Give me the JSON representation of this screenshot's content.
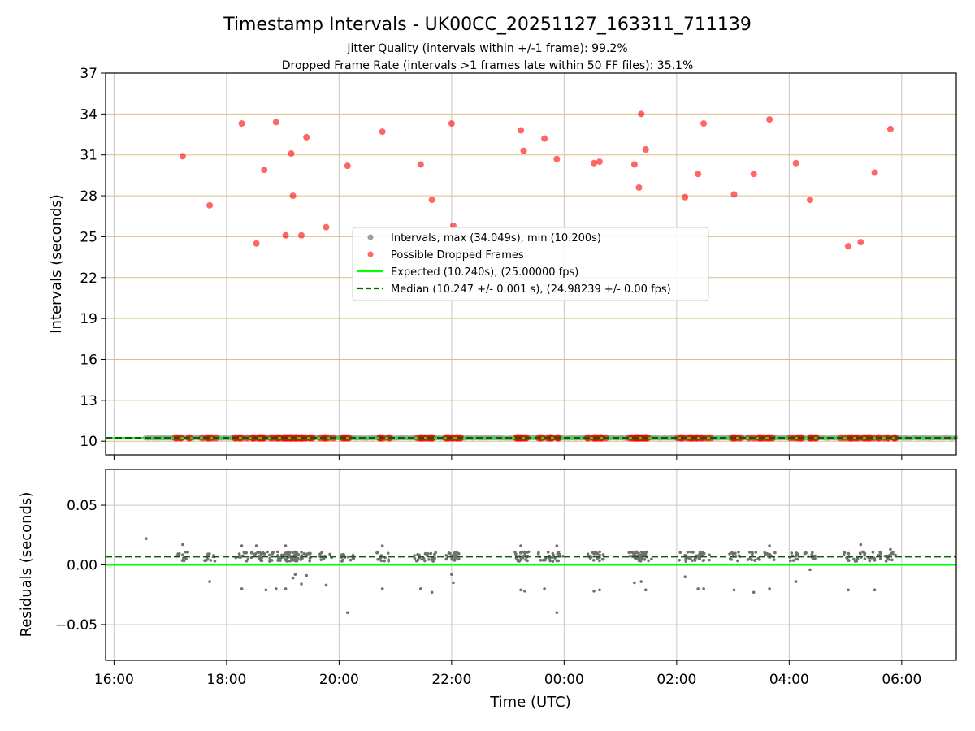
{
  "chart_data": {
    "type": "scatter",
    "title": "Timestamp Intervals - UK00CC_20251127_163311_711139",
    "subtitle_lines": [
      "Jitter Quality (intervals within +/-1 frame): 99.2%",
      "Dropped Frame Rate (intervals >1 frames late within 50 FF files): 35.1%"
    ],
    "xlabel": "Time (UTC)",
    "x_tick_labels": [
      "16:00",
      "18:00",
      "20:00",
      "22:00",
      "00:00",
      "02:00",
      "04:00",
      "06:00"
    ],
    "x_ticks_hours": [
      16,
      18,
      20,
      22,
      24,
      26,
      28,
      30
    ],
    "xlim_hours": [
      15.85,
      30.97
    ],
    "grid": true,
    "legend_placement": "center",
    "colors": {
      "intervals": "#a0a0a0",
      "dropped": "#ff0000",
      "expected": "#00ff00",
      "median": "#006400",
      "gridline_top": "#d9c085",
      "gridline": "#c8c8c8",
      "residual_points": "#707070"
    },
    "panels": [
      {
        "name": "intervals",
        "ylabel": "Intervals (seconds)",
        "ylim": [
          9.0,
          37.0
        ],
        "y_ticks": [
          10,
          13,
          16,
          19,
          22,
          25,
          28,
          31,
          34,
          37
        ],
        "y_tick_labels": [
          "10",
          "13",
          "16",
          "19",
          "22",
          "25",
          "28",
          "31",
          "34",
          "37"
        ],
        "legend": [
          {
            "label": "Intervals, max (34.049s), min (10.200s)",
            "marker": "circle",
            "color": "#a0a0a0"
          },
          {
            "label": "Possible Dropped Frames",
            "marker": "circle",
            "color": "#ff0000"
          },
          {
            "label": "Expected (10.240s), (25.00000 fps)",
            "marker": "line",
            "color": "#00ff00"
          },
          {
            "label": "Median (10.247 +/- 0.001 s), (24.98239 +/- 0.00 fps)",
            "marker": "dashed",
            "color": "#006400"
          }
        ],
        "expected": 10.24,
        "median": 10.247,
        "baseline_start_hour": 16.55,
        "dropped_frames": [
          {
            "t": 17.22,
            "v": 30.9
          },
          {
            "t": 17.7,
            "v": 27.3
          },
          {
            "t": 18.27,
            "v": 33.3
          },
          {
            "t": 18.53,
            "v": 24.5
          },
          {
            "t": 18.67,
            "v": 29.9
          },
          {
            "t": 18.88,
            "v": 33.4
          },
          {
            "t": 19.05,
            "v": 25.1
          },
          {
            "t": 19.15,
            "v": 31.1
          },
          {
            "t": 19.18,
            "v": 28.0
          },
          {
            "t": 19.33,
            "v": 25.1
          },
          {
            "t": 19.42,
            "v": 32.3
          },
          {
            "t": 19.77,
            "v": 25.7
          },
          {
            "t": 20.15,
            "v": 30.2
          },
          {
            "t": 20.77,
            "v": 32.7
          },
          {
            "t": 21.45,
            "v": 30.3
          },
          {
            "t": 21.65,
            "v": 27.7
          },
          {
            "t": 22.0,
            "v": 33.3
          },
          {
            "t": 22.03,
            "v": 25.8
          },
          {
            "t": 23.23,
            "v": 32.8
          },
          {
            "t": 23.28,
            "v": 31.3
          },
          {
            "t": 23.65,
            "v": 32.2
          },
          {
            "t": 23.87,
            "v": 30.7
          },
          {
            "t": 24.53,
            "v": 30.4
          },
          {
            "t": 24.63,
            "v": 30.5
          },
          {
            "t": 25.25,
            "v": 30.3
          },
          {
            "t": 25.33,
            "v": 28.6
          },
          {
            "t": 25.37,
            "v": 34.0
          },
          {
            "t": 25.45,
            "v": 31.4
          },
          {
            "t": 26.15,
            "v": 27.9
          },
          {
            "t": 26.38,
            "v": 29.6
          },
          {
            "t": 26.48,
            "v": 33.3
          },
          {
            "t": 27.02,
            "v": 28.1
          },
          {
            "t": 27.37,
            "v": 29.6
          },
          {
            "t": 27.65,
            "v": 33.6
          },
          {
            "t": 28.12,
            "v": 30.4
          },
          {
            "t": 28.37,
            "v": 27.7
          },
          {
            "t": 29.05,
            "v": 24.3
          },
          {
            "t": 29.27,
            "v": 24.6
          },
          {
            "t": 29.52,
            "v": 29.7
          },
          {
            "t": 29.8,
            "v": 32.9
          }
        ]
      },
      {
        "name": "residuals",
        "ylabel": "Residuals (seconds)",
        "ylim": [
          -0.08,
          0.08
        ],
        "y_ticks": [
          0.05,
          0.0,
          -0.05
        ],
        "y_tick_labels": [
          "0.05",
          "0.00",
          "−0.05"
        ],
        "expected_residual": 0.0,
        "median_residual": 0.007,
        "scatter_outliers": [
          {
            "t": 16.57,
            "v": 0.022
          },
          {
            "t": 17.22,
            "v": 0.017
          },
          {
            "t": 17.7,
            "v": -0.014
          },
          {
            "t": 18.27,
            "v": -0.02
          },
          {
            "t": 18.27,
            "v": 0.016
          },
          {
            "t": 18.53,
            "v": 0.016
          },
          {
            "t": 18.7,
            "v": -0.021
          },
          {
            "t": 18.88,
            "v": -0.02
          },
          {
            "t": 19.05,
            "v": -0.02
          },
          {
            "t": 19.05,
            "v": 0.016
          },
          {
            "t": 19.18,
            "v": -0.011
          },
          {
            "t": 19.22,
            "v": -0.008
          },
          {
            "t": 19.33,
            "v": -0.016
          },
          {
            "t": 19.42,
            "v": -0.009
          },
          {
            "t": 19.77,
            "v": -0.017
          },
          {
            "t": 20.15,
            "v": -0.04
          },
          {
            "t": 20.77,
            "v": -0.02
          },
          {
            "t": 20.77,
            "v": 0.016
          },
          {
            "t": 21.45,
            "v": -0.02
          },
          {
            "t": 21.65,
            "v": -0.023
          },
          {
            "t": 22.0,
            "v": -0.008
          },
          {
            "t": 22.03,
            "v": -0.015
          },
          {
            "t": 23.23,
            "v": -0.021
          },
          {
            "t": 23.3,
            "v": -0.022
          },
          {
            "t": 23.23,
            "v": 0.016
          },
          {
            "t": 23.65,
            "v": -0.02
          },
          {
            "t": 23.87,
            "v": -0.04
          },
          {
            "t": 23.87,
            "v": 0.016
          },
          {
            "t": 24.53,
            "v": -0.022
          },
          {
            "t": 24.63,
            "v": -0.021
          },
          {
            "t": 25.25,
            "v": -0.015
          },
          {
            "t": 25.37,
            "v": -0.014
          },
          {
            "t": 25.45,
            "v": -0.021
          },
          {
            "t": 26.15,
            "v": -0.01
          },
          {
            "t": 26.38,
            "v": -0.02
          },
          {
            "t": 26.48,
            "v": -0.02
          },
          {
            "t": 27.02,
            "v": -0.021
          },
          {
            "t": 27.37,
            "v": -0.023
          },
          {
            "t": 27.65,
            "v": -0.02
          },
          {
            "t": 27.65,
            "v": 0.016
          },
          {
            "t": 28.12,
            "v": -0.014
          },
          {
            "t": 28.37,
            "v": -0.004
          },
          {
            "t": 29.05,
            "v": -0.021
          },
          {
            "t": 29.27,
            "v": 0.017
          },
          {
            "t": 29.52,
            "v": -0.021
          },
          {
            "t": 29.8,
            "v": 0.013
          }
        ]
      }
    ]
  }
}
